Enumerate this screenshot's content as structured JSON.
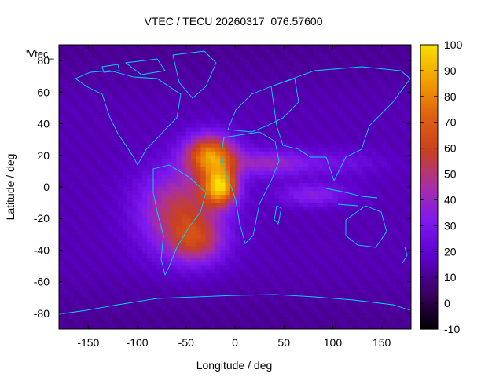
{
  "chart_data": {
    "type": "heatmap",
    "title": "VTEC / TECU 20260317_076.57600",
    "xlabel": "Longitude / deg",
    "ylabel": "Latitude / deg",
    "xlim": [
      -180,
      180
    ],
    "ylim": [
      -90,
      90
    ],
    "xticks": [
      -150,
      -100,
      -50,
      0,
      50,
      100,
      150
    ],
    "yticks": [
      -80,
      -60,
      -40,
      -20,
      0,
      20,
      40,
      60,
      80
    ],
    "colorbar": {
      "range": [
        -10,
        100
      ],
      "ticks": [
        100,
        90,
        80,
        70,
        60,
        50,
        40,
        30,
        20,
        10,
        0,
        -10
      ],
      "palette": [
        "#000000",
        "#3a0060",
        "#5c00c8",
        "#7c18f0",
        "#a82ea8",
        "#c84020",
        "#e06010",
        "#f0a000",
        "#f8e000"
      ]
    },
    "key_label": "'Vtec_",
    "background_value": 15,
    "anomalies": [
      {
        "lon": -25,
        "lat": 20,
        "value": 80,
        "sx": 18,
        "sy": 9
      },
      {
        "lon": -15,
        "lat": 0,
        "value": 85,
        "sx": 12,
        "sy": 8
      },
      {
        "lon": -55,
        "lat": -15,
        "value": 55,
        "sx": 30,
        "sy": 18
      },
      {
        "lon": -40,
        "lat": -35,
        "value": 45,
        "sx": 20,
        "sy": 10
      },
      {
        "lon": 35,
        "lat": 15,
        "value": 40,
        "sx": 30,
        "sy": 6
      },
      {
        "lon": 80,
        "lat": -5,
        "value": 35,
        "sx": 25,
        "sy": 5
      },
      {
        "lon": 110,
        "lat": 15,
        "value": 25,
        "sx": 30,
        "sy": 6
      },
      {
        "lon": -100,
        "lat": 10,
        "value": 15,
        "sx": 25,
        "sy": 15
      }
    ],
    "coastline_color": "#00d8f0"
  }
}
